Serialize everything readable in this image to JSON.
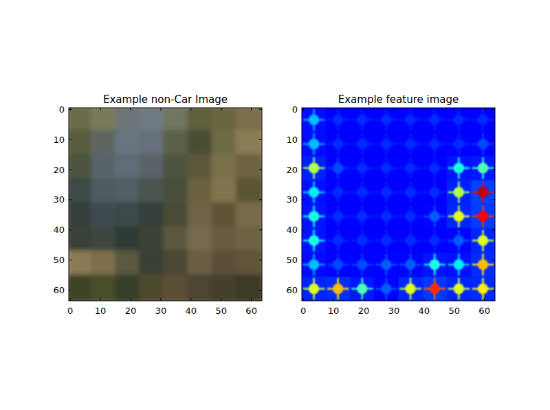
{
  "chart_data": [
    {
      "type": "image",
      "title": "Example non-Car Image",
      "xlim": [
        -0.5,
        63.5
      ],
      "ylim": [
        63.5,
        -0.5
      ],
      "xticks": [
        0,
        10,
        20,
        30,
        40,
        50,
        60
      ],
      "yticks": [
        0,
        10,
        20,
        30,
        40,
        50,
        60
      ],
      "colors": [
        [
          "#6b6a48",
          "#7a7a5a",
          "#6e7478",
          "#6f7a82",
          "#707660",
          "#5e5e3c",
          "#6a6640",
          "#7a7048"
        ],
        [
          "#5a5c40",
          "#5e6660",
          "#68757e",
          "#66707a",
          "#5c6048",
          "#4c4e30",
          "#6e6a44",
          "#8a7c54"
        ],
        [
          "#4c5440",
          "#58646a",
          "#5e6c76",
          "#5a6468",
          "#4e5440",
          "#5a5838",
          "#7a7048",
          "#6e6440"
        ],
        [
          "#3e4a44",
          "#4e5c62",
          "#505e64",
          "#4a5450",
          "#46503a",
          "#6a6240",
          "#807450",
          "#5c5436"
        ],
        [
          "#34403e",
          "#3e4c50",
          "#3a484a",
          "#34403a",
          "#4a4c34",
          "#706448",
          "#5e5436",
          "#786a48"
        ],
        [
          "#3a4038",
          "#3c4640",
          "#2e3a34",
          "#3a4236",
          "#5c5640",
          "#766a4e",
          "#685c40",
          "#6e6244"
        ],
        [
          "#8a7a56",
          "#7e6e4c",
          "#5a5a40",
          "#3a4034",
          "#4a4834",
          "#6a5e44",
          "#5a503a",
          "#605438"
        ],
        [
          "#3c4428",
          "#4a4e2c",
          "#34402a",
          "#4e4a2e",
          "#5a5036",
          "#4c4430",
          "#44402a",
          "#3e3a26"
        ]
      ]
    },
    {
      "type": "heatmap",
      "title": "Example feature image",
      "xlim": [
        -0.5,
        63.5
      ],
      "ylim": [
        63.5,
        -0.5
      ],
      "xticks": [
        0,
        10,
        20,
        30,
        40,
        50,
        60
      ],
      "yticks": [
        0,
        10,
        20,
        30,
        40,
        50,
        60
      ],
      "color_range": [
        0,
        1
      ],
      "cells": [
        [
          0.2,
          0.05,
          0.05,
          0.05,
          0.05,
          0.05,
          0.05,
          0.05
        ],
        [
          0.2,
          0.05,
          0.05,
          0.05,
          0.05,
          0.05,
          0.05,
          0.08
        ],
        [
          0.45,
          0.08,
          0.05,
          0.05,
          0.05,
          0.05,
          0.3,
          0.35
        ],
        [
          0.25,
          0.05,
          0.05,
          0.05,
          0.05,
          0.05,
          0.45,
          0.85
        ],
        [
          0.3,
          0.05,
          0.05,
          0.05,
          0.05,
          0.1,
          0.5,
          0.8
        ],
        [
          0.3,
          0.05,
          0.05,
          0.05,
          0.05,
          0.05,
          0.1,
          0.5
        ],
        [
          0.2,
          0.08,
          0.08,
          0.1,
          0.1,
          0.3,
          0.25,
          0.6
        ],
        [
          0.5,
          0.6,
          0.35,
          0.1,
          0.5,
          0.75,
          0.5,
          0.55
        ]
      ]
    }
  ]
}
